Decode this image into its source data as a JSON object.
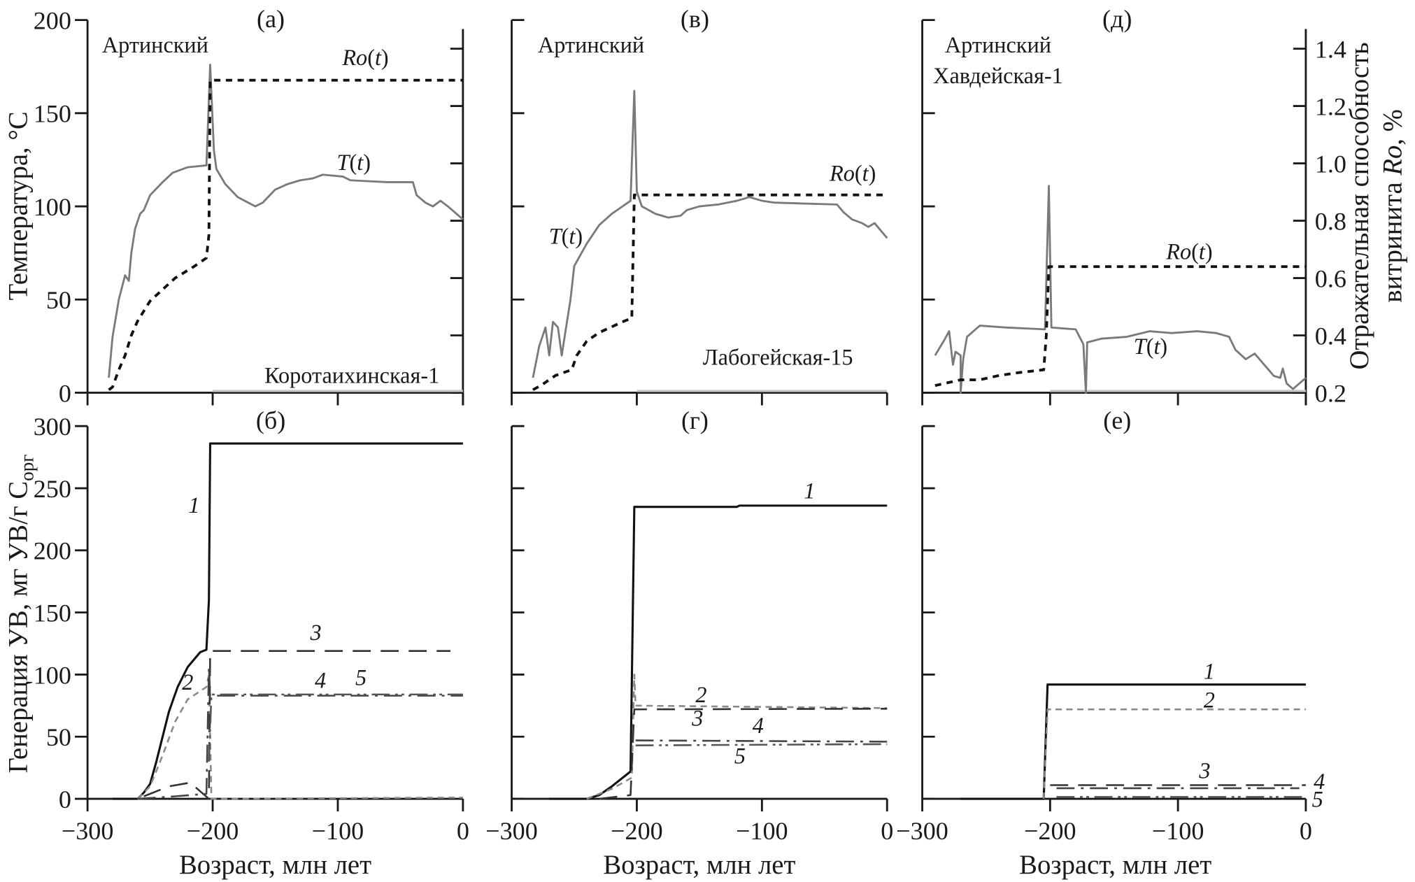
{
  "axis_titles": {
    "temperature": "Температура, °C",
    "generation_main": "Генерация УВ, мг УВ/г С",
    "generation_sub": "орг",
    "ro_line1": "Отражательная способность",
    "ro_line2_prefix": "витринита ",
    "ro_line2_italic": "Ro",
    "ro_line2_suffix": ", %",
    "age": "Возраст, млн лет"
  },
  "colors": {
    "temperature": "#7a7a7a",
    "ro": "#111111",
    "gen1": "#111111",
    "gen2": "#8a8a8a",
    "gen3": "#333333",
    "gen4": "#444444",
    "gen5": "#555555"
  },
  "chart_data": [
    {
      "panel": "(а)",
      "type": "line",
      "xlim": [
        -300,
        0
      ],
      "ylim": [
        0,
        200
      ],
      "y2lim": [
        0.2,
        1.5
      ],
      "yticks": [
        "0",
        "50",
        "100",
        "150",
        "200"
      ],
      "y2ticks_shown": false,
      "texts": [
        "Артинский",
        "Коротаихинская-1"
      ],
      "series": [
        {
          "name": "T(t)",
          "axis": "left",
          "style": "temperature",
          "points": [
            [
              -283,
              8
            ],
            [
              -280,
              30
            ],
            [
              -275,
              50
            ],
            [
              -270,
              63
            ],
            [
              -267,
              60
            ],
            [
              -265,
              75
            ],
            [
              -262,
              88
            ],
            [
              -258,
              96
            ],
            [
              -255,
              98
            ],
            [
              -250,
              106
            ],
            [
              -240,
              113
            ],
            [
              -232,
              118
            ],
            [
              -220,
              121
            ],
            [
              -205,
              122
            ],
            [
              -202,
              176
            ],
            [
              -199,
              130
            ],
            [
              -197,
              120
            ],
            [
              -190,
              112
            ],
            [
              -180,
              105
            ],
            [
              -166,
              100
            ],
            [
              -160,
              102
            ],
            [
              -150,
              109
            ],
            [
              -140,
              112
            ],
            [
              -130,
              114
            ],
            [
              -120,
              115
            ],
            [
              -112,
              117
            ],
            [
              -96,
              116
            ],
            [
              -90,
              114
            ],
            [
              -60,
              113
            ],
            [
              -40,
              113
            ],
            [
              -37,
              106
            ],
            [
              -30,
              102
            ],
            [
              -24,
              100
            ],
            [
              -18,
              103
            ],
            [
              -12,
              100
            ],
            [
              0,
              93
            ]
          ]
        },
        {
          "name": "Ro(t)",
          "axis": "right",
          "style": "ro",
          "points": [
            [
              -283,
              0.21
            ],
            [
              -280,
              0.22
            ],
            [
              -275,
              0.28
            ],
            [
              -270,
              0.33
            ],
            [
              -265,
              0.4
            ],
            [
              -260,
              0.45
            ],
            [
              -250,
              0.52
            ],
            [
              -240,
              0.56
            ],
            [
              -230,
              0.6
            ],
            [
              -215,
              0.64
            ],
            [
              -205,
              0.67
            ],
            [
              -203,
              0.75
            ],
            [
              -202,
              1.29
            ],
            [
              0,
              1.29
            ]
          ]
        }
      ]
    },
    {
      "panel": "(в)",
      "type": "line",
      "xlim": [
        -300,
        0
      ],
      "ylim": [
        0,
        200
      ],
      "y2lim": [
        0.2,
        1.5
      ],
      "texts": [
        "Артинский",
        "Лабогейская-15"
      ],
      "series": [
        {
          "name": "T(t)",
          "axis": "left",
          "style": "temperature",
          "points": [
            [
              -283,
              8
            ],
            [
              -278,
              25
            ],
            [
              -273,
              35
            ],
            [
              -270,
              20
            ],
            [
              -267,
              38
            ],
            [
              -263,
              35
            ],
            [
              -260,
              20
            ],
            [
              -257,
              33
            ],
            [
              -253,
              50
            ],
            [
              -250,
              68
            ],
            [
              -240,
              80
            ],
            [
              -230,
              90
            ],
            [
              -220,
              96
            ],
            [
              -205,
              103
            ],
            [
              -202,
              162
            ],
            [
              -200,
              108
            ],
            [
              -196,
              100
            ],
            [
              -185,
              96
            ],
            [
              -175,
              94
            ],
            [
              -165,
              95
            ],
            [
              -160,
              98
            ],
            [
              -150,
              100
            ],
            [
              -135,
              101
            ],
            [
              -120,
              103
            ],
            [
              -110,
              105
            ],
            [
              -100,
              103
            ],
            [
              -90,
              102
            ],
            [
              -40,
              101
            ],
            [
              -35,
              97
            ],
            [
              -28,
              93
            ],
            [
              -20,
              91
            ],
            [
              -15,
              89
            ],
            [
              -10,
              91
            ],
            [
              -5,
              87
            ],
            [
              0,
              83
            ]
          ]
        },
        {
          "name": "Ro(t)",
          "axis": "right",
          "style": "ro",
          "points": [
            [
              -283,
              0.21
            ],
            [
              -275,
              0.23
            ],
            [
              -265,
              0.26
            ],
            [
              -252,
              0.28
            ],
            [
              -248,
              0.33
            ],
            [
              -240,
              0.38
            ],
            [
              -230,
              0.41
            ],
            [
              -220,
              0.43
            ],
            [
              -210,
              0.45
            ],
            [
              -204,
              0.46
            ],
            [
              -202,
              0.89
            ],
            [
              0,
              0.89
            ]
          ]
        }
      ]
    },
    {
      "panel": "(д)",
      "type": "line",
      "xlim": [
        -300,
        0
      ],
      "ylim": [
        0,
        200
      ],
      "y2lim": [
        0.2,
        1.5
      ],
      "y2ticks": [
        "0.2",
        "0.4",
        "0.6",
        "0.8",
        "1.0",
        "1.2",
        "1.4"
      ],
      "texts": [
        "Артинский",
        "Хавдейская-1"
      ],
      "series": [
        {
          "name": "T(t)",
          "axis": "left",
          "style": "temperature",
          "points": [
            [
              -290,
              20
            ],
            [
              -283,
              28
            ],
            [
              -279,
              33
            ],
            [
              -276,
              15
            ],
            [
              -274,
              22
            ],
            [
              -272,
              21
            ],
            [
              -270,
              20
            ],
            [
              -270,
              0
            ],
            [
              -268,
              18
            ],
            [
              -265,
              30
            ],
            [
              -255,
              36
            ],
            [
              -235,
              35
            ],
            [
              -204,
              34
            ],
            [
              -201,
              111
            ],
            [
              -199,
              35
            ],
            [
              -180,
              34
            ],
            [
              -174,
              26
            ],
            [
              -172,
              0
            ],
            [
              -171,
              27
            ],
            [
              -160,
              29
            ],
            [
              -140,
              30
            ],
            [
              -122,
              33
            ],
            [
              -105,
              32
            ],
            [
              -85,
              33
            ],
            [
              -70,
              32
            ],
            [
              -60,
              30
            ],
            [
              -55,
              23
            ],
            [
              -47,
              18
            ],
            [
              -40,
              21
            ],
            [
              -30,
              13
            ],
            [
              -25,
              9
            ],
            [
              -20,
              8
            ],
            [
              -18,
              13
            ],
            [
              -15,
              5
            ],
            [
              -10,
              2
            ],
            [
              0,
              8
            ]
          ]
        },
        {
          "name": "Ro(t)",
          "axis": "right",
          "style": "ro",
          "points": [
            [
              -290,
              0.225
            ],
            [
              -280,
              0.235
            ],
            [
              -270,
              0.245
            ],
            [
              -255,
              0.245
            ],
            [
              -240,
              0.26
            ],
            [
              -225,
              0.27
            ],
            [
              -205,
              0.28
            ],
            [
              -203,
              0.4
            ],
            [
              -201,
              0.64
            ],
            [
              0,
              0.64
            ]
          ]
        }
      ]
    },
    {
      "panel": "(б)",
      "type": "line",
      "xlim": [
        -300,
        0
      ],
      "ylim": [
        0,
        300
      ],
      "xticks": [
        "−300",
        "−200",
        "−100",
        "0"
      ],
      "yticks": [
        "0",
        "50",
        "100",
        "150",
        "200",
        "250",
        "300"
      ],
      "series": [
        {
          "name": "1",
          "style": "gen1",
          "points": [
            [
              -280,
              0
            ],
            [
              -260,
              0
            ],
            [
              -255,
              5
            ],
            [
              -250,
              12
            ],
            [
              -245,
              30
            ],
            [
              -240,
              50
            ],
            [
              -235,
              70
            ],
            [
              -228,
              90
            ],
            [
              -220,
              106
            ],
            [
              -210,
              118
            ],
            [
              -205,
              120
            ],
            [
              -203,
              160
            ],
            [
              -202,
              286
            ],
            [
              0,
              286
            ]
          ]
        },
        {
          "name": "2",
          "style": "gen2",
          "points": [
            [
              -260,
              0
            ],
            [
              -250,
              10
            ],
            [
              -240,
              35
            ],
            [
              -230,
              62
            ],
            [
              -220,
              80
            ],
            [
              -205,
              90
            ],
            [
              -203,
              100
            ],
            [
              -201,
              0
            ],
            [
              0,
              1
            ]
          ]
        },
        {
          "name": "3",
          "style": "gen3",
          "points": [
            [
              -255,
              2
            ],
            [
              -235,
              10
            ],
            [
              -218,
              13
            ],
            [
              -203,
              0
            ],
            [
              -202,
              119
            ],
            [
              -10,
              119
            ]
          ]
        },
        {
          "name": "4",
          "style": "gen4",
          "points": [
            [
              -260,
              0
            ],
            [
              -230,
              2
            ],
            [
              -205,
              4
            ],
            [
              -203,
              107
            ],
            [
              -202,
              83
            ],
            [
              0,
              83
            ]
          ]
        },
        {
          "name": "5",
          "style": "gen5",
          "points": [
            [
              -203,
              30
            ],
            [
              -201,
              84
            ],
            [
              0,
              84
            ]
          ]
        }
      ]
    },
    {
      "panel": "(г)",
      "type": "line",
      "xlim": [
        -300,
        0
      ],
      "ylim": [
        0,
        300
      ],
      "xticks": [
        "−300",
        "−200",
        "−100",
        "0"
      ],
      "series": [
        {
          "name": "1",
          "style": "gen1",
          "points": [
            [
              -270,
              0
            ],
            [
              -240,
              0
            ],
            [
              -230,
              3
            ],
            [
              -220,
              10
            ],
            [
              -205,
              22
            ],
            [
              -202,
              235
            ],
            [
              -120,
              235
            ],
            [
              -118,
              236
            ],
            [
              0,
              236
            ]
          ]
        },
        {
          "name": "2",
          "style": "gen2",
          "points": [
            [
              -240,
              0
            ],
            [
              -220,
              8
            ],
            [
              -204,
              17
            ],
            [
              -202,
              100
            ],
            [
              -201,
              75
            ],
            [
              0,
              73
            ]
          ]
        },
        {
          "name": "3",
          "style": "gen3",
          "points": [
            [
              -230,
              0
            ],
            [
              -205,
              3
            ],
            [
              -202,
              72
            ],
            [
              0,
              72.5
            ]
          ]
        },
        {
          "name": "4",
          "style": "gen4",
          "points": [
            [
              -201,
              47
            ],
            [
              0,
              46
            ]
          ]
        },
        {
          "name": "5",
          "style": "gen5",
          "points": [
            [
              -201,
              43
            ],
            [
              0,
              44
            ]
          ]
        }
      ]
    },
    {
      "panel": "(е)",
      "type": "line",
      "xlim": [
        -300,
        0
      ],
      "ylim": [
        0,
        300
      ],
      "xticks": [
        "−300",
        "−200",
        "−100",
        "0"
      ],
      "series": [
        {
          "name": "1",
          "style": "gen1",
          "points": [
            [
              -270,
              0
            ],
            [
              -205,
              0
            ],
            [
              -202,
              92
            ],
            [
              0,
              92
            ]
          ]
        },
        {
          "name": "2",
          "style": "gen2",
          "points": [
            [
              -205,
              0
            ],
            [
              -202,
              72
            ],
            [
              0,
              72
            ]
          ]
        },
        {
          "name": "3",
          "style": "gen3",
          "points": [
            [
              -200,
              11
            ],
            [
              0,
              11
            ]
          ]
        },
        {
          "name": "4",
          "style": "gen4",
          "points": [
            [
              -195,
              8.5
            ],
            [
              -5,
              8.5
            ]
          ]
        },
        {
          "name": "5",
          "style": "gen5",
          "points": [
            [
              -195,
              1.5
            ],
            [
              0,
              1.5
            ]
          ]
        }
      ]
    }
  ]
}
